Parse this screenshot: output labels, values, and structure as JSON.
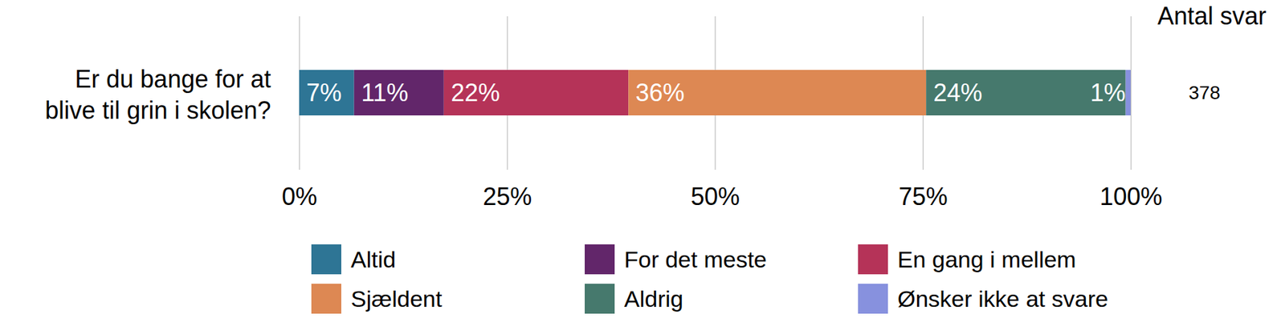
{
  "chart_data": {
    "type": "bar",
    "orientation": "horizontal",
    "stacked": true,
    "data_labels": true,
    "grid": true,
    "legend": "bottom",
    "categories": [
      "Er du bange for at\nblive til grin i skolen?"
    ],
    "xlim": [
      0,
      100
    ],
    "xticks": [
      {
        "value": 0,
        "label": "0%"
      },
      {
        "value": 25,
        "label": "25%"
      },
      {
        "value": 50,
        "label": "50%"
      },
      {
        "value": 75,
        "label": "75%"
      },
      {
        "value": 100,
        "label": "100%"
      }
    ],
    "annotations": [
      "Antal svar",
      "378"
    ],
    "series": [
      {
        "name": "Altid",
        "color": "#2e7595",
        "values": [
          6.6
        ],
        "value_labels": [
          "7%"
        ]
      },
      {
        "name": "For det meste",
        "color": "#62266a",
        "values": [
          10.8
        ],
        "value_labels": [
          "11%"
        ]
      },
      {
        "name": "En gang i mellem",
        "color": "#b53358",
        "values": [
          22.2
        ],
        "value_labels": [
          "22%"
        ]
      },
      {
        "name": "Sjældent",
        "color": "#dd8853",
        "values": [
          35.8
        ],
        "value_labels": [
          "36%"
        ]
      },
      {
        "name": "Aldrig",
        "color": "#46796d",
        "values": [
          24.0
        ],
        "value_labels": [
          "24%"
        ]
      },
      {
        "name": "Ønsker ikke at svare",
        "color": "#8791de",
        "values": [
          0.6
        ],
        "value_labels": [
          "1%"
        ]
      }
    ]
  }
}
